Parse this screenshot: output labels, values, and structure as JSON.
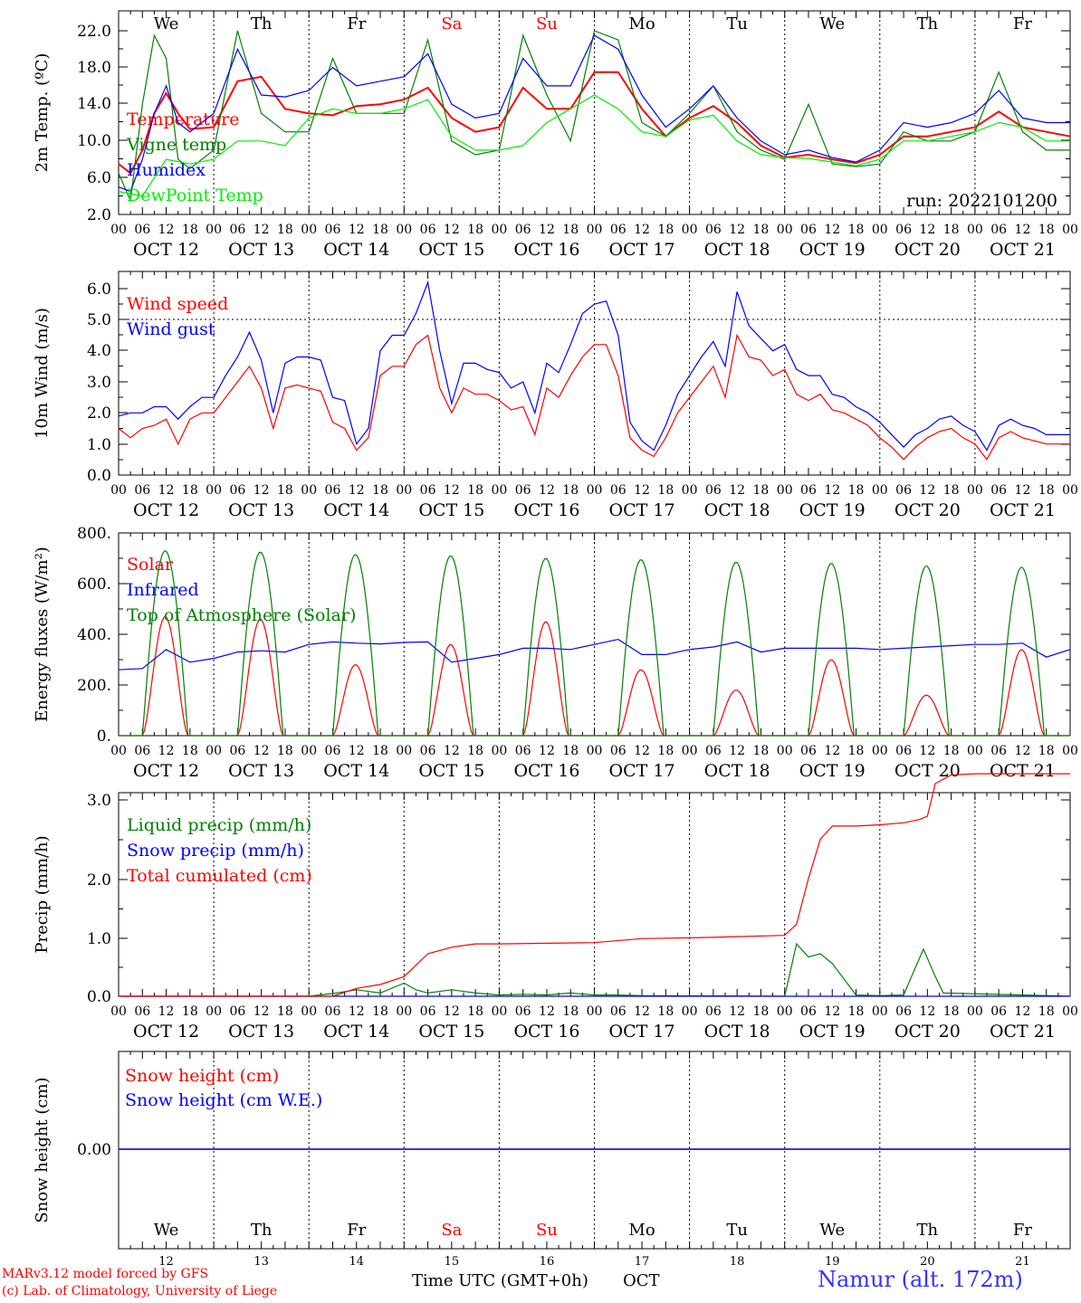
{
  "chart_data": [
    {
      "type": "line",
      "ylabel": "2m Temp. (ºC)",
      "ylim": [
        2,
        24
      ],
      "yticks": [
        "22.0",
        "18.0",
        "14.0",
        "10.0",
        "6.0",
        "2.0"
      ],
      "annotation": "run: 2022101200",
      "series": [
        {
          "name": "Temperature",
          "color": "#ff0000",
          "x": [
            0,
            3,
            6,
            9,
            12,
            15,
            18,
            24,
            30,
            36,
            42,
            48,
            54,
            60,
            66,
            72,
            78,
            84,
            90,
            96,
            102,
            108,
            114,
            120,
            126,
            132,
            138,
            144,
            150,
            156,
            162,
            168,
            174,
            180,
            186,
            192,
            198,
            204,
            210,
            216,
            222,
            228,
            234,
            240
          ],
          "values": [
            7.5,
            6.5,
            9,
            13,
            15.2,
            13,
            11.3,
            11.5,
            16.5,
            17,
            13.5,
            13,
            12.8,
            13.8,
            14,
            14.5,
            15.8,
            12.5,
            11,
            11.5,
            15.8,
            13.5,
            13.5,
            17.5,
            17.5,
            13.5,
            10.5,
            12.5,
            13.8,
            12,
            9.5,
            8.2,
            8.5,
            8,
            7.6,
            8.5,
            10.5,
            10.5,
            11,
            11.5,
            13.2,
            11.5,
            11,
            10.5
          ]
        },
        {
          "name": "Vigne temp",
          "color": "#008000",
          "x": [
            0,
            3,
            6,
            9,
            12,
            15,
            18,
            24,
            30,
            36,
            42,
            48,
            54,
            60,
            66,
            72,
            78,
            84,
            90,
            96,
            102,
            108,
            114,
            120,
            126,
            132,
            138,
            144,
            150,
            156,
            162,
            168,
            174,
            180,
            186,
            192,
            198,
            204,
            210,
            216,
            222,
            228,
            234,
            240
          ],
          "values": [
            6.5,
            3.5,
            14,
            21.5,
            19,
            8,
            7,
            9,
            22,
            13,
            11,
            11,
            19,
            13,
            13,
            13,
            21,
            10,
            8.5,
            9,
            21.5,
            15,
            10,
            22,
            21,
            12,
            10.5,
            13,
            16,
            11,
            9,
            8,
            14,
            7.5,
            7.2,
            7.5,
            11,
            10,
            10,
            11,
            17.5,
            11,
            9,
            9
          ]
        },
        {
          "name": "Humidex",
          "color": "#0000ff",
          "x": [
            0,
            3,
            6,
            9,
            12,
            15,
            18,
            24,
            30,
            36,
            42,
            48,
            54,
            60,
            66,
            72,
            78,
            84,
            90,
            96,
            102,
            108,
            114,
            120,
            126,
            132,
            138,
            144,
            150,
            156,
            162,
            168,
            174,
            180,
            186,
            192,
            198,
            204,
            210,
            216,
            222,
            228,
            234,
            240
          ],
          "values": [
            5,
            4.5,
            8,
            13,
            16,
            12,
            11,
            13,
            20,
            15,
            14.8,
            15.5,
            18,
            16,
            16.5,
            17,
            19.5,
            14,
            12.5,
            13,
            19,
            16,
            16,
            21.5,
            20,
            15,
            11.5,
            13.5,
            16,
            12.5,
            10,
            8.5,
            9,
            8.2,
            7.7,
            9,
            12,
            11.5,
            12,
            13,
            15.5,
            12.5,
            12,
            12
          ]
        },
        {
          "name": "DewPoint Temp",
          "color": "#00ee00",
          "x": [
            0,
            6,
            12,
            18,
            24,
            30,
            36,
            42,
            48,
            54,
            60,
            66,
            72,
            78,
            84,
            90,
            96,
            102,
            108,
            114,
            120,
            126,
            132,
            138,
            144,
            150,
            156,
            162,
            168,
            174,
            180,
            186,
            192,
            198,
            204,
            210,
            216,
            222,
            228,
            234,
            240
          ],
          "values": [
            4.5,
            4,
            8,
            7.5,
            8,
            10,
            10,
            9.5,
            12.5,
            13.5,
            13,
            13,
            13.5,
            14.5,
            10.5,
            9,
            9,
            9.5,
            12,
            13.5,
            15,
            13.5,
            11,
            10.5,
            12.3,
            12.8,
            10,
            8.5,
            8.2,
            8.1,
            7.7,
            7.3,
            8,
            10,
            10,
            10.5,
            11,
            12,
            11.5,
            10,
            10
          ]
        }
      ]
    },
    {
      "type": "line",
      "ylabel": "10m Wind (m/s)",
      "ylim": [
        0,
        6.5
      ],
      "yticks": [
        "6.0",
        "5.0",
        "4.0",
        "3.0",
        "2.0",
        "1.0",
        "0.0"
      ],
      "series": [
        {
          "name": "Wind speed",
          "color": "#ff0000",
          "x": [
            0,
            3,
            6,
            9,
            12,
            15,
            18,
            21,
            24,
            27,
            30,
            33,
            36,
            39,
            42,
            45,
            48,
            51,
            54,
            57,
            60,
            63,
            66,
            69,
            72,
            75,
            78,
            81,
            84,
            87,
            90,
            93,
            96,
            99,
            102,
            105,
            108,
            111,
            114,
            117,
            120,
            123,
            126,
            129,
            132,
            135,
            138,
            141,
            144,
            147,
            150,
            153,
            156,
            159,
            162,
            165,
            168,
            171,
            174,
            177,
            180,
            183,
            186,
            189,
            192,
            195,
            198,
            201,
            204,
            207,
            210,
            213,
            216,
            219,
            222,
            225,
            228,
            231,
            234,
            237,
            240
          ],
          "values": [
            1.5,
            1.2,
            1.5,
            1.6,
            1.8,
            1.0,
            1.8,
            2.0,
            2.0,
            2.5,
            3.0,
            3.5,
            2.8,
            1.5,
            2.8,
            2.9,
            2.8,
            2.7,
            1.7,
            1.5,
            0.8,
            1.2,
            3.2,
            3.5,
            3.5,
            4.2,
            4.5,
            2.8,
            2.0,
            2.8,
            2.6,
            2.6,
            2.4,
            2.1,
            2.2,
            1.3,
            2.8,
            2.5,
            3.2,
            3.8,
            4.2,
            4.2,
            3.2,
            1.2,
            0.8,
            0.6,
            1.2,
            2.0,
            2.5,
            3.0,
            3.5,
            2.5,
            4.5,
            3.8,
            3.7,
            3.2,
            3.4,
            2.6,
            2.4,
            2.6,
            2.1,
            2.0,
            1.8,
            1.6,
            1.2,
            0.9,
            0.5,
            0.9,
            1.2,
            1.4,
            1.5,
            1.2,
            1.0,
            0.5,
            1.2,
            1.4,
            1.2,
            1.1,
            1.0,
            1.0,
            1.0
          ]
        },
        {
          "name": "Wind gust",
          "color": "#0000ff",
          "x": [
            0,
            3,
            6,
            9,
            12,
            15,
            18,
            21,
            24,
            27,
            30,
            33,
            36,
            39,
            42,
            45,
            48,
            51,
            54,
            57,
            60,
            63,
            66,
            69,
            72,
            75,
            78,
            81,
            84,
            87,
            90,
            93,
            96,
            99,
            102,
            105,
            108,
            111,
            114,
            117,
            120,
            123,
            126,
            129,
            132,
            135,
            138,
            141,
            144,
            147,
            150,
            153,
            156,
            159,
            162,
            165,
            168,
            171,
            174,
            177,
            180,
            183,
            186,
            189,
            192,
            195,
            198,
            201,
            204,
            207,
            210,
            213,
            216,
            219,
            222,
            225,
            228,
            231,
            234,
            237,
            240
          ],
          "values": [
            1.9,
            2.0,
            2.0,
            2.2,
            2.2,
            1.8,
            2.2,
            2.5,
            2.5,
            3.2,
            3.8,
            4.6,
            3.7,
            2.0,
            3.6,
            3.8,
            3.8,
            3.7,
            2.5,
            2.4,
            1.0,
            1.5,
            4.0,
            4.5,
            4.5,
            5.2,
            6.2,
            4.0,
            2.3,
            3.6,
            3.6,
            3.4,
            3.3,
            2.8,
            3.0,
            2.0,
            3.6,
            3.3,
            4.2,
            5.2,
            5.5,
            5.6,
            4.5,
            1.7,
            1.1,
            0.8,
            1.6,
            2.6,
            3.2,
            3.8,
            4.3,
            3.5,
            5.9,
            4.8,
            4.4,
            4.0,
            4.2,
            3.4,
            3.2,
            3.2,
            2.6,
            2.5,
            2.2,
            2.0,
            1.7,
            1.3,
            0.9,
            1.3,
            1.5,
            1.8,
            1.9,
            1.6,
            1.4,
            0.8,
            1.6,
            1.8,
            1.6,
            1.5,
            1.3,
            1.3,
            1.3
          ]
        }
      ]
    },
    {
      "type": "line",
      "ylabel": "Energy fluxes (W/m²)",
      "ylim": [
        0,
        800
      ],
      "yticks": [
        "800.",
        "600.",
        "400.",
        "200.",
        "0."
      ],
      "series": [
        {
          "name": "Solar",
          "color": "#ff0000",
          "peaks": [
            470,
            460,
            280,
            360,
            450,
            260,
            180,
            300,
            160,
            340
          ]
        },
        {
          "name": "Infrared",
          "color": "#0000ff",
          "x": [
            0,
            6,
            12,
            18,
            24,
            30,
            36,
            42,
            48,
            54,
            60,
            66,
            72,
            78,
            84,
            90,
            96,
            102,
            108,
            114,
            120,
            126,
            132,
            138,
            144,
            150,
            156,
            162,
            168,
            174,
            180,
            186,
            192,
            198,
            204,
            210,
            216,
            222,
            228,
            234,
            240
          ],
          "values": [
            260,
            265,
            340,
            290,
            305,
            330,
            335,
            330,
            360,
            370,
            365,
            362,
            368,
            370,
            290,
            305,
            320,
            345,
            345,
            340,
            360,
            380,
            320,
            320,
            340,
            350,
            370,
            330,
            345,
            345,
            345,
            345,
            340,
            345,
            350,
            355,
            360,
            360,
            365,
            310,
            340
          ]
        },
        {
          "name": "Top of Atmosphere (Solar)",
          "color": "#008000",
          "peaks": [
            730,
            725,
            715,
            710,
            700,
            695,
            685,
            680,
            670,
            665
          ]
        }
      ]
    },
    {
      "type": "line",
      "ylabel": "Precip (mm/h)",
      "ylim": [
        0,
        3.5
      ],
      "yticks": [
        "3.0",
        "2.0",
        "1.0",
        "0.0"
      ],
      "series": [
        {
          "name": "Liquid precip (mm/h)",
          "color": "#008000",
          "x": [
            0,
            48,
            55,
            60,
            66,
            72,
            75,
            78,
            84,
            90,
            96,
            102,
            108,
            114,
            120,
            126,
            132,
            168,
            171,
            174,
            177,
            180,
            186,
            192,
            198,
            200,
            203,
            206,
            208,
            240
          ],
          "values": [
            0,
            0,
            0.05,
            0.1,
            0.05,
            0.2,
            0.1,
            0.05,
            0.1,
            0.05,
            0.02,
            0.03,
            0.02,
            0.05,
            0.02,
            0.02,
            0.01,
            0,
            0.8,
            0.6,
            0.65,
            0.5,
            0.02,
            0.01,
            0.02,
            0.3,
            0.72,
            0.3,
            0.05,
            0
          ]
        },
        {
          "name": "Snow precip (mm/h)",
          "color": "#0000ff",
          "x": [
            0,
            240
          ],
          "values": [
            0,
            0
          ]
        },
        {
          "name": "Total cumulated (cm)",
          "color": "#ff0000",
          "x": [
            0,
            54,
            60,
            66,
            72,
            78,
            84,
            90,
            96,
            120,
            132,
            150,
            168,
            171,
            174,
            177,
            180,
            186,
            192,
            198,
            202,
            204,
            206,
            210,
            216,
            240
          ],
          "values": [
            0,
            0,
            0.12,
            0.18,
            0.3,
            0.65,
            0.75,
            0.8,
            0.8,
            0.82,
            0.88,
            0.9,
            0.93,
            1.1,
            1.8,
            2.4,
            2.6,
            2.6,
            2.62,
            2.65,
            2.7,
            2.75,
            3.25,
            3.38,
            3.4,
            3.4
          ]
        }
      ]
    },
    {
      "type": "line",
      "ylabel": "Snow height (cm)",
      "yticks": [
        "0.00"
      ],
      "series": [
        {
          "name": "Snow height (cm)",
          "color": "#ff0000",
          "x": [
            0,
            240
          ],
          "values": [
            0,
            0
          ]
        },
        {
          "name": "Snow height (cm W.E.)",
          "color": "#0000ff",
          "x": [
            0,
            240
          ],
          "values": [
            0,
            0
          ]
        }
      ]
    }
  ],
  "time_axis": {
    "hour_ticks": [
      "00",
      "06",
      "12",
      "18"
    ],
    "last_tick": "00",
    "date_labels": [
      "OCT 12",
      "OCT 13",
      "OCT 14",
      "OCT 15",
      "OCT 16",
      "OCT 17",
      "OCT 18",
      "OCT 19",
      "OCT 20",
      "OCT 21"
    ],
    "day_names": [
      "We",
      "Th",
      "Fr",
      "Sa",
      "Su",
      "Mo",
      "Tu",
      "We",
      "Th",
      "Fr"
    ],
    "weekend_color": "#ff0000",
    "day_numbers": [
      "12",
      "13",
      "14",
      "15",
      "16",
      "17",
      "18",
      "19",
      "20",
      "21"
    ],
    "xlabel": "Time UTC (GMT+0h)",
    "month": "OCT"
  },
  "footer": {
    "credit_line1": "MARv3.12 model forced by GFS",
    "credit_line2": "(c) Lab. of Climatology, University of Liege",
    "station": "Namur (alt. 172m)"
  }
}
